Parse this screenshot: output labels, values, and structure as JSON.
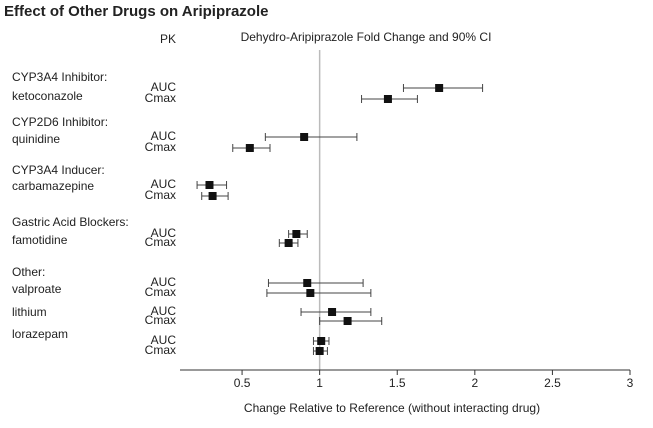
{
  "chart_data": {
    "type": "forest",
    "title": "Effect of Other Drugs on Aripiprazole",
    "pk_header": "PK",
    "subtitle": "Dehydro-Aripiprazole Fold Change and 90% CI",
    "x_label": "Change Relative to Reference (without interacting drug)",
    "xlim": [
      0.1,
      3
    ],
    "xticks": [
      0.5,
      1,
      1.5,
      2,
      2.5,
      3
    ],
    "reference_line": 1,
    "color": "#111111",
    "groups": [
      {
        "label": [
          "CYP3A4 Inhibitor:",
          "ketoconazole"
        ],
        "rows": [
          {
            "name": "AUC",
            "value": 1.77,
            "lower": 1.54,
            "upper": 2.05
          },
          {
            "name": "Cmax",
            "value": 1.44,
            "lower": 1.27,
            "upper": 1.63
          }
        ]
      },
      {
        "label": [
          "CYP2D6 Inhibitor:",
          "quinidine"
        ],
        "rows": [
          {
            "name": "AUC",
            "value": 0.9,
            "lower": 0.65,
            "upper": 1.24
          },
          {
            "name": "Cmax",
            "value": 0.55,
            "lower": 0.44,
            "upper": 0.68
          }
        ]
      },
      {
        "label": [
          "CYP3A4 Inducer:",
          "carbamazepine"
        ],
        "rows": [
          {
            "name": "AUC",
            "value": 0.29,
            "lower": 0.21,
            "upper": 0.4
          },
          {
            "name": "Cmax",
            "value": 0.31,
            "lower": 0.24,
            "upper": 0.41
          }
        ]
      },
      {
        "label": [
          "Gastric Acid Blockers:",
          "famotidine"
        ],
        "rows": [
          {
            "name": "AUC",
            "value": 0.85,
            "lower": 0.8,
            "upper": 0.92
          },
          {
            "name": "Cmax",
            "value": 0.8,
            "lower": 0.74,
            "upper": 0.86
          }
        ]
      },
      {
        "label": [
          "Other:",
          "valproate"
        ],
        "rows": [
          {
            "name": "AUC",
            "value": 0.92,
            "lower": 0.67,
            "upper": 1.28
          },
          {
            "name": "Cmax",
            "value": 0.94,
            "lower": 0.66,
            "upper": 1.33
          }
        ]
      },
      {
        "label": [
          "lithium"
        ],
        "rows": [
          {
            "name": "AUC",
            "value": 1.08,
            "lower": 0.88,
            "upper": 1.33
          },
          {
            "name": "Cmax",
            "value": 1.18,
            "lower": 1.0,
            "upper": 1.4
          }
        ]
      },
      {
        "label": [
          "lorazepam"
        ],
        "rows": [
          {
            "name": "AUC",
            "value": 1.01,
            "lower": 0.96,
            "upper": 1.06
          },
          {
            "name": "Cmax",
            "value": 1.0,
            "lower": 0.96,
            "upper": 1.05
          }
        ]
      }
    ]
  }
}
